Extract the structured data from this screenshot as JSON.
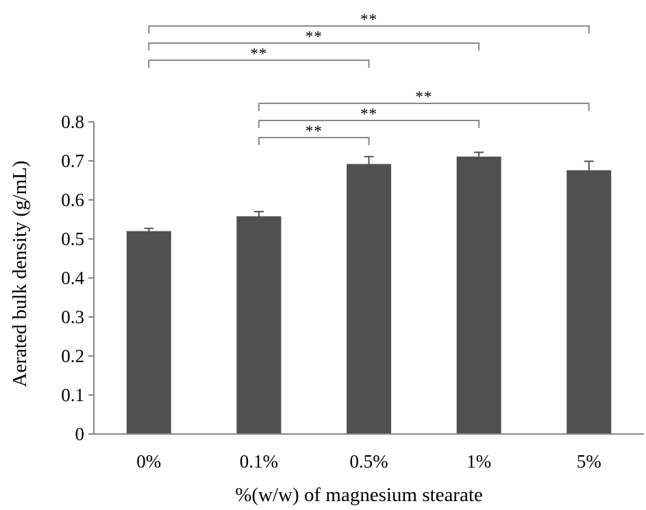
{
  "chart_data": {
    "type": "bar",
    "title": "",
    "xlabel": "%(w/w) of magnesium stearate",
    "ylabel": "Aerated bulk density (g/mL)",
    "categories": [
      "0%",
      "0.1%",
      "0.5%",
      "1%",
      "5%"
    ],
    "values": [
      0.52,
      0.558,
      0.692,
      0.711,
      0.676
    ],
    "errors": [
      0.007,
      0.012,
      0.019,
      0.011,
      0.023
    ],
    "ylim": [
      0,
      0.8
    ],
    "yticks": [
      0,
      0.1,
      0.2,
      0.3,
      0.4,
      0.5,
      0.6,
      0.7,
      0.8
    ],
    "ytick_labels": [
      "0",
      "0.1",
      "0.2",
      "0.3",
      "0.4",
      "0.5",
      "0.6",
      "0.7",
      "0.8"
    ],
    "grid": false,
    "legend": "none",
    "bar_color": "#505050",
    "significance": [
      {
        "from": 0,
        "to": 4,
        "label": "**"
      },
      {
        "from": 0,
        "to": 3,
        "label": "**"
      },
      {
        "from": 0,
        "to": 2,
        "label": "**"
      },
      {
        "from": 1,
        "to": 4,
        "label": "**"
      },
      {
        "from": 1,
        "to": 3,
        "label": "**"
      },
      {
        "from": 1,
        "to": 2,
        "label": "**"
      }
    ]
  }
}
